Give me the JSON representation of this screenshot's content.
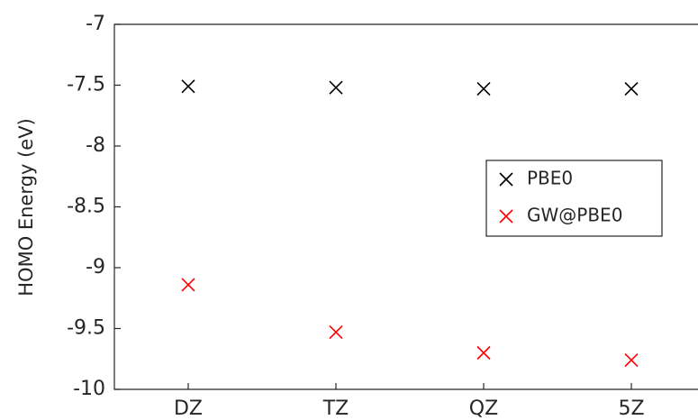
{
  "chart_data": {
    "type": "scatter",
    "y_label": "HOMO Energy (eV)",
    "categories": [
      "DZ",
      "TZ",
      "QZ",
      "5Z"
    ],
    "series": [
      {
        "name": "PBE0",
        "color": "#000000",
        "values": [
          -7.51,
          -7.52,
          -7.53,
          -7.53
        ]
      },
      {
        "name": "GW@PBE0",
        "color": "#ff0000",
        "values": [
          -9.14,
          -9.53,
          -9.7,
          -9.76
        ]
      }
    ],
    "ylim": [
      -10,
      -7
    ],
    "yticks": [
      -10,
      -9.5,
      -9,
      -8.5,
      -8,
      -7.5,
      -7
    ],
    "legend": "right"
  }
}
